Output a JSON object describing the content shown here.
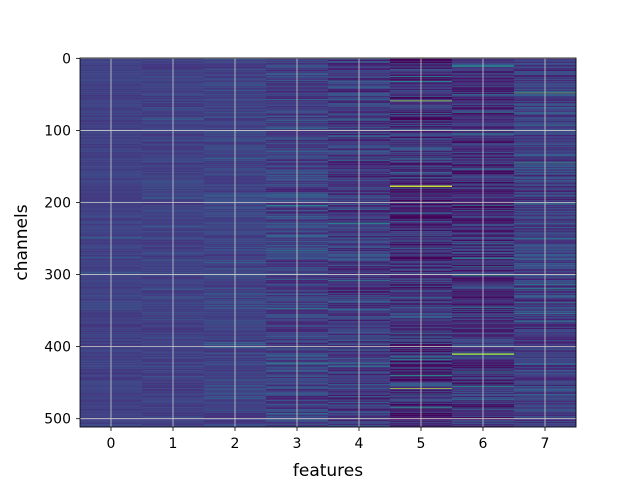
{
  "chart_data": {
    "type": "heatmap",
    "title": "",
    "xlabel": "features",
    "ylabel": "channels",
    "x_categories": [
      "0",
      "1",
      "2",
      "3",
      "4",
      "5",
      "6",
      "7"
    ],
    "y_ticks": [
      0,
      100,
      200,
      300,
      400,
      500
    ],
    "y_range": [
      0,
      511
    ],
    "n_rows": 512,
    "n_cols": 8,
    "colormap": "viridis",
    "grid": true,
    "legend": "none",
    "column_profile": [
      {
        "feature": 0,
        "base": 0.24,
        "spread": 0.05
      },
      {
        "feature": 1,
        "base": 0.24,
        "spread": 0.06
      },
      {
        "feature": 2,
        "base": 0.25,
        "spread": 0.08
      },
      {
        "feature": 3,
        "base": 0.25,
        "spread": 0.14
      },
      {
        "feature": 4,
        "base": 0.22,
        "spread": 0.16
      },
      {
        "feature": 5,
        "base": 0.18,
        "spread": 0.2
      },
      {
        "feature": 6,
        "base": 0.18,
        "spread": 0.18
      },
      {
        "feature": 7,
        "base": 0.24,
        "spread": 0.16
      }
    ],
    "highlights": [
      {
        "feature": 5,
        "channel": 59,
        "value": 0.9
      },
      {
        "feature": 5,
        "channel": 177,
        "value": 0.95
      },
      {
        "feature": 5,
        "channel": 178,
        "value": 0.95
      },
      {
        "feature": 5,
        "channel": 458,
        "value": 0.92
      },
      {
        "feature": 6,
        "channel": 410,
        "value": 0.93
      },
      {
        "feature": 6,
        "channel": 411,
        "value": 0.85
      },
      {
        "feature": 7,
        "channel": 48,
        "value": 0.8
      },
      {
        "feature": 7,
        "channel": 145,
        "value": 0.7
      },
      {
        "feature": 3,
        "channel": 204,
        "value": 0.62
      },
      {
        "feature": 6,
        "channel": 301,
        "value": 0.65
      },
      {
        "feature": 7,
        "channel": 320,
        "value": 0.6
      }
    ]
  }
}
